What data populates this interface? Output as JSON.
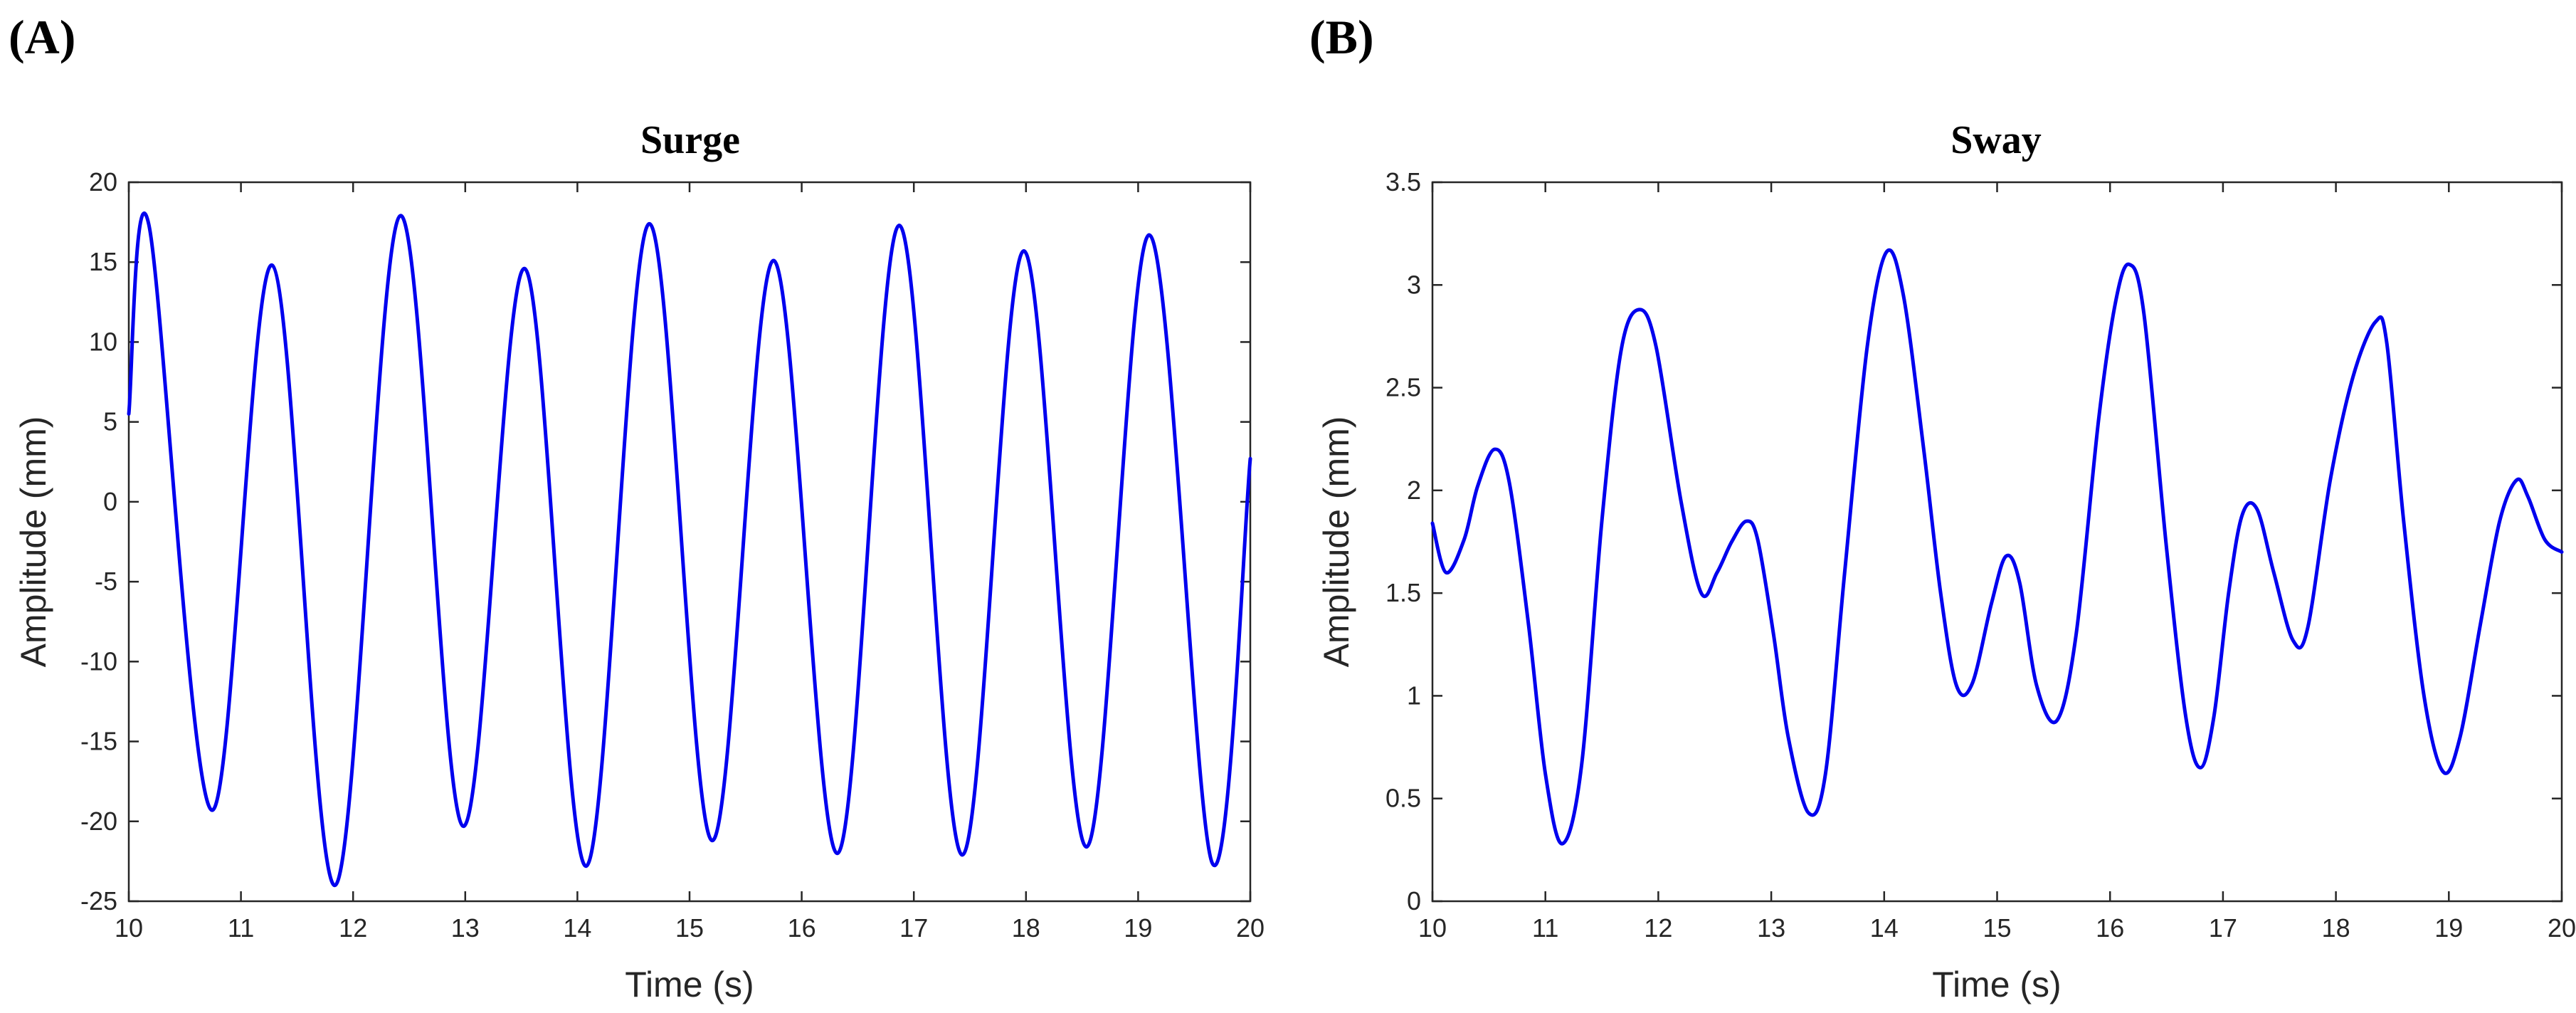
{
  "chart_data": [
    {
      "panel_label": "(A)",
      "type": "line",
      "title": "Surge",
      "xlabel": "Time (s)",
      "ylabel": "Amplitude (mm)",
      "xlim": [
        10,
        20
      ],
      "ylim": [
        -25,
        20
      ],
      "xticks": [
        10,
        11,
        12,
        13,
        14,
        15,
        16,
        17,
        18,
        19,
        20
      ],
      "yticks": [
        -25,
        -20,
        -15,
        -10,
        -5,
        0,
        5,
        10,
        15,
        20
      ],
      "grid": false,
      "line_color": "#0000ee",
      "series": [
        {
          "x": [
            10.0,
            10.18,
            10.74,
            11.28,
            11.84,
            12.42,
            12.98,
            13.53,
            14.08,
            14.64,
            15.2,
            15.75,
            16.32,
            16.87,
            17.43,
            17.98,
            18.54,
            19.1,
            19.66,
            20.0
          ],
          "y": [
            5.5,
            17.3,
            -19.3,
            14.8,
            -24.0,
            17.9,
            -20.3,
            14.6,
            -22.8,
            17.4,
            -21.2,
            15.1,
            -22.0,
            17.3,
            -22.1,
            15.7,
            -21.6,
            16.7,
            -22.6,
            2.7
          ]
        }
      ]
    },
    {
      "panel_label": "(B)",
      "type": "line",
      "title": "Sway",
      "xlabel": "Time (s)",
      "ylabel": "Amplitude (mm)",
      "xlim": [
        10,
        20
      ],
      "ylim": [
        0,
        3.5
      ],
      "xticks": [
        10,
        11,
        12,
        13,
        14,
        15,
        16,
        17,
        18,
        19,
        20
      ],
      "yticks": [
        0,
        0.5,
        1,
        1.5,
        2,
        2.5,
        3,
        3.5
      ],
      "ytick_labels": [
        "0",
        "0.5",
        "1",
        "1.5",
        "2",
        "2.5",
        "3",
        "3.5"
      ],
      "grid": false,
      "line_color": "#0000ee",
      "series": [
        {
          "x": [
            10.0,
            10.12,
            10.28,
            10.4,
            10.55,
            10.68,
            10.85,
            11.0,
            11.15,
            11.32,
            11.5,
            11.67,
            11.83,
            11.98,
            12.2,
            12.38,
            12.52,
            12.65,
            12.78,
            12.88,
            13.02,
            13.15,
            13.33,
            13.48,
            13.65,
            13.85,
            14.02,
            14.17,
            14.35,
            14.5,
            14.64,
            14.78,
            14.95,
            15.08,
            15.2,
            15.35,
            15.53,
            15.7,
            15.9,
            16.05,
            16.17,
            16.3,
            16.5,
            16.67,
            16.8,
            16.92,
            17.05,
            17.17,
            17.3,
            17.45,
            17.62,
            17.75,
            17.95,
            18.15,
            18.35,
            18.45,
            18.6,
            18.78,
            18.95,
            19.1,
            19.28,
            19.45,
            19.6,
            19.7,
            19.85,
            20.0
          ],
          "y": [
            1.84,
            1.6,
            1.76,
            2.02,
            2.2,
            2.04,
            1.35,
            0.62,
            0.28,
            0.66,
            1.85,
            2.68,
            2.88,
            2.7,
            1.95,
            1.5,
            1.6,
            1.75,
            1.85,
            1.76,
            1.3,
            0.8,
            0.43,
            0.62,
            1.6,
            2.7,
            3.16,
            2.95,
            2.2,
            1.5,
            1.05,
            1.06,
            1.45,
            1.68,
            1.55,
            1.05,
            0.88,
            1.3,
            2.35,
            2.92,
            3.1,
            2.86,
            1.72,
            0.9,
            0.65,
            0.9,
            1.5,
            1.88,
            1.91,
            1.6,
            1.27,
            1.33,
            2.05,
            2.55,
            2.82,
            2.72,
            1.85,
            1.0,
            0.63,
            0.8,
            1.35,
            1.85,
            2.05,
            1.97,
            1.76,
            1.7
          ]
        }
      ]
    }
  ]
}
